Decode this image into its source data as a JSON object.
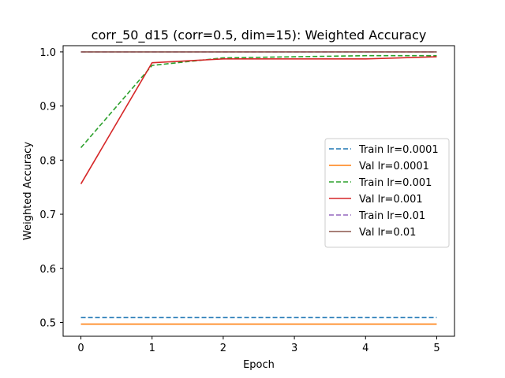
{
  "chart_data": {
    "type": "line",
    "title": "corr_50_d15 (corr=0.5, dim=15): Weighted Accuracy",
    "xlabel": "Epoch",
    "ylabel": "Weighted Accuracy",
    "x": [
      0,
      1,
      2,
      3,
      4,
      5
    ],
    "xlim": [
      -0.25,
      5.25
    ],
    "ylim": [
      0.4745,
      1.0115
    ],
    "xticks": [
      0,
      1,
      2,
      3,
      4,
      5
    ],
    "yticks": [
      0.5,
      0.6,
      0.7,
      0.8,
      0.9,
      1.0
    ],
    "ytick_labels": [
      "0.5",
      "0.6",
      "0.7",
      "0.8",
      "0.9",
      "1.0"
    ],
    "grid": false,
    "legend_position": "center-right",
    "series": [
      {
        "name": "Train lr=0.0001",
        "color": "#1f77b4",
        "dash": true,
        "values": [
          0.509,
          0.509,
          0.509,
          0.509,
          0.509,
          0.509
        ]
      },
      {
        "name": "Val lr=0.0001",
        "color": "#ff7f0e",
        "dash": false,
        "values": [
          0.497,
          0.497,
          0.497,
          0.497,
          0.497,
          0.497
        ]
      },
      {
        "name": "Train lr=0.001",
        "color": "#2ca02c",
        "dash": true,
        "values": [
          0.823,
          0.975,
          0.989,
          0.991,
          0.993,
          0.993
        ]
      },
      {
        "name": "Val lr=0.001",
        "color": "#d62728",
        "dash": false,
        "values": [
          0.756,
          0.98,
          0.987,
          0.987,
          0.987,
          0.991
        ]
      },
      {
        "name": "Train lr=0.01",
        "color": "#9467bd",
        "dash": true,
        "values": [
          1.0,
          1.0,
          1.0,
          1.0,
          1.0,
          1.0
        ]
      },
      {
        "name": "Val lr=0.01",
        "color": "#8c564b",
        "dash": false,
        "values": [
          1.0,
          1.0,
          1.0,
          1.0,
          1.0,
          1.0
        ]
      }
    ]
  }
}
